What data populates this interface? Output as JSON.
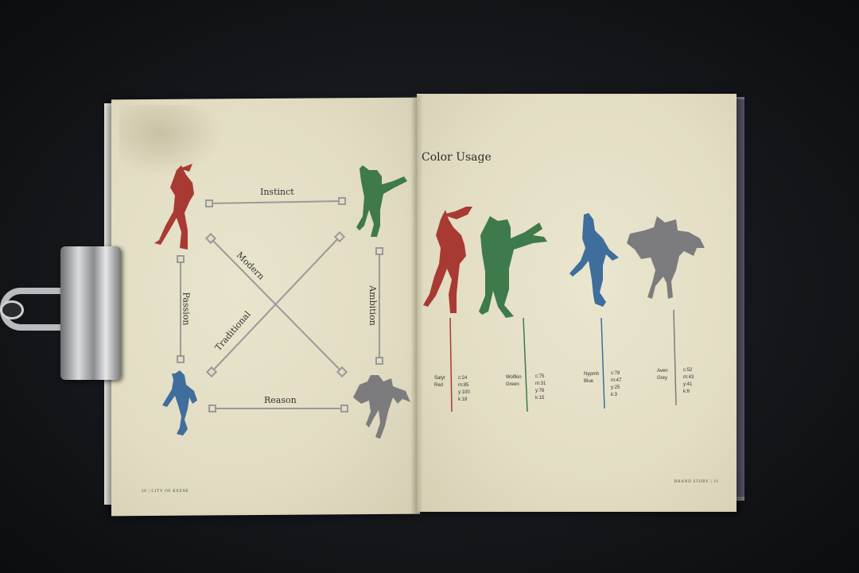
{
  "diagram": {
    "top_label": "Instinct",
    "bottom_label": "Reason",
    "left_label": "Passion",
    "right_label": "Ambition",
    "diag1_label": "Modern",
    "diag2_label": "Traditional"
  },
  "color_usage": {
    "title": "Color Usage",
    "swatches": [
      {
        "name_1": "Satyr",
        "name_2": "Red",
        "c": "c:24",
        "m": "m:85",
        "y": "y:100",
        "k": "k:18",
        "color": "#a83a33"
      },
      {
        "name_1": "Wolfkin",
        "name_2": "Green",
        "c": "c:75",
        "m": "m:31",
        "y": "y:76",
        "k": "k:15",
        "color": "#3e7a4b"
      },
      {
        "name_1": "Nypmh",
        "name_2": "Blue",
        "c": "c:78",
        "m": "m:47",
        "y": "y:25",
        "k": "k:3",
        "color": "#3f6d9c"
      },
      {
        "name_1": "Aven",
        "name_2": "Grey",
        "c": "c:52",
        "m": "m:43",
        "y": "y:41",
        "k": "k:6",
        "color": "#7c7c7e"
      }
    ]
  },
  "footer": {
    "left": "20 | CITY OF KEENE",
    "right": "BRAND STORY | 21"
  }
}
